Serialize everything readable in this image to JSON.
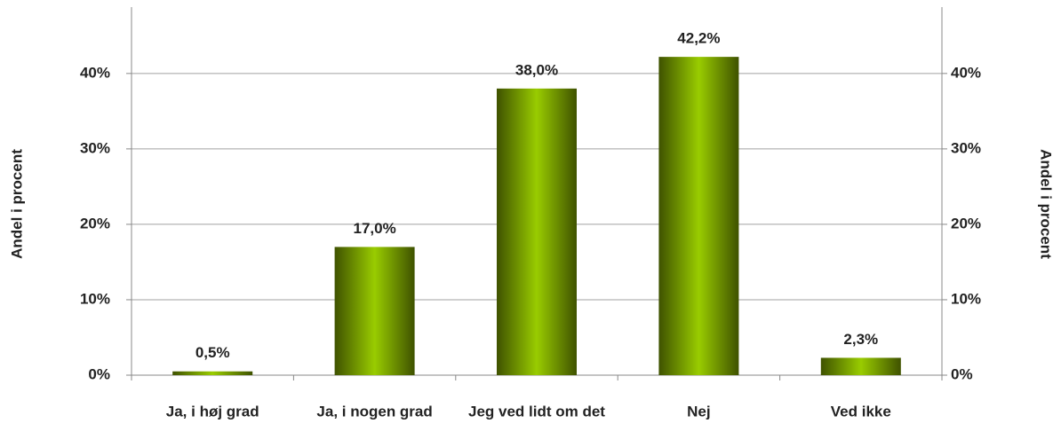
{
  "chart_data": {
    "type": "bar",
    "categories": [
      "Ja, i høj grad",
      "Ja, i nogen grad",
      "Jeg ved lidt om det",
      "Nej",
      "Ved ikke"
    ],
    "values": [
      0.5,
      17.0,
      38.0,
      42.2,
      2.3
    ],
    "value_labels": [
      "0,5%",
      "17,0%",
      "38,0%",
      "42,2%",
      "2,3%"
    ],
    "color": "#99cc00",
    "ylabel": "Andel i procent",
    "y2label": "Andel i procent",
    "ylim": [
      0,
      48.8
    ],
    "yticks": [
      {
        "value": 0,
        "label": "0%"
      },
      {
        "value": 10,
        "label": "10%"
      },
      {
        "value": 20,
        "label": "20%"
      },
      {
        "value": 30,
        "label": "30%"
      },
      {
        "value": 40,
        "label": "40%"
      }
    ],
    "y2lim": [
      0,
      48.8
    ],
    "y2ticks": [
      {
        "value": 0,
        "label": "0%"
      },
      {
        "value": 10,
        "label": "10%"
      },
      {
        "value": 20,
        "label": "20%"
      },
      {
        "value": 30,
        "label": "30%"
      },
      {
        "value": 40,
        "label": "40%"
      }
    ],
    "grid": true
  }
}
